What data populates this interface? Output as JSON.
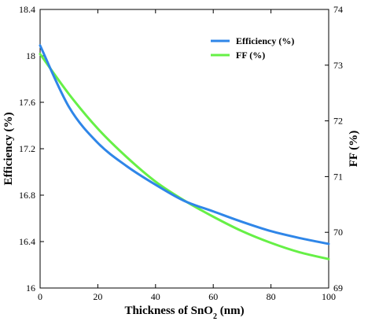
{
  "chart_data": {
    "type": "line",
    "xlabel": "Thickness of SnO",
    "xlabel_subscript": "2",
    "xlabel_unit": " (nm)",
    "ylabel_left": "Efficiency (%)",
    "ylabel_right": "FF (%)",
    "xlim": [
      0,
      100
    ],
    "ylim_left": [
      16.0,
      18.4
    ],
    "ylim_right": [
      69,
      74
    ],
    "xticks": [
      0,
      20,
      40,
      60,
      80,
      100
    ],
    "xtick_labels": [
      "0",
      "20",
      "40",
      "60",
      "80",
      "100"
    ],
    "yticks_left": [
      16.0,
      16.4,
      16.8,
      17.2,
      17.6,
      18.0,
      18.4
    ],
    "ytick_labels_left": [
      "16",
      "16.4",
      "16.8",
      "17.2",
      "17.6",
      "18",
      "18.4"
    ],
    "yticks_right": [
      69,
      70,
      71,
      72,
      73,
      74
    ],
    "ytick_labels_right": [
      "69",
      "70",
      "71",
      "72",
      "73",
      "74"
    ],
    "grid": false,
    "legend_position": "top-right",
    "series": [
      {
        "name": "Efficiency (%)",
        "axis": "left",
        "color": "#2F86E8",
        "x": [
          0,
          10,
          20,
          30,
          40,
          50,
          60,
          70,
          80,
          90,
          100
        ],
        "y": [
          18.09,
          17.56,
          17.25,
          17.05,
          16.89,
          16.75,
          16.66,
          16.57,
          16.49,
          16.43,
          16.38
        ]
      },
      {
        "name": "FF (%)",
        "axis": "right",
        "color": "#66F046",
        "x": [
          0,
          10,
          20,
          30,
          40,
          50,
          60,
          70,
          80,
          90,
          100
        ],
        "y": [
          73.2,
          72.48,
          71.86,
          71.35,
          70.91,
          70.57,
          70.28,
          70.02,
          69.81,
          69.64,
          69.52
        ]
      }
    ]
  }
}
